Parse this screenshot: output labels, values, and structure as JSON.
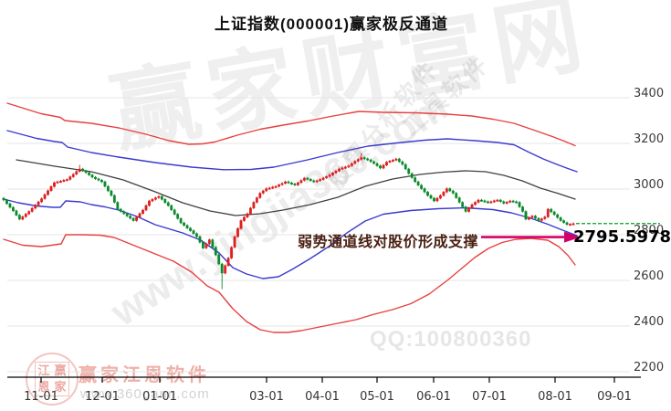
{
  "title": "上证指数(000001)赢家极反通道",
  "annotation": {
    "text": "弱势通道线对股价形成支撑",
    "value_label": "2795.5978"
  },
  "watermarks": {
    "brand_big": "赢家财富网",
    "site_url": "www.yingjia360.com",
    "stock_software": "股票分析软件",
    "tool_software": "工具软件",
    "qq": "QQ:100800360",
    "gann_brand": "赢家江恩软件",
    "gann_url": "www.360gann.com",
    "seal_chars": [
      "江",
      "赢",
      "恩",
      "家"
    ]
  },
  "x_axis": {
    "ticks": [
      {
        "label": "11-01",
        "x": 45
      },
      {
        "label": "12-01",
        "x": 112
      },
      {
        "label": "01-01",
        "x": 175
      },
      {
        "label": "03-01",
        "x": 292
      },
      {
        "label": "04-01",
        "x": 353
      },
      {
        "label": "05-01",
        "x": 413
      },
      {
        "label": "06-01",
        "x": 475
      },
      {
        "label": "07-01",
        "x": 536
      },
      {
        "label": "08-01",
        "x": 608
      },
      {
        "label": "09-01",
        "x": 673
      }
    ]
  },
  "y_axis": {
    "ticks": [
      3400,
      3200,
      3000,
      2800,
      2600,
      2400,
      2200
    ]
  },
  "chart_data": {
    "type": "candlestick",
    "symbol": "上证指数",
    "code": "000001",
    "indicator": "赢家极反通道",
    "title": "上证指数(000001)赢家极反通道",
    "ylim": [
      2200,
      3400
    ],
    "x_labels": [
      "11-01",
      "12-01",
      "01-01",
      "03-01",
      "04-01",
      "05-01",
      "06-01",
      "07-01",
      "08-01",
      "09-01"
    ],
    "first_open": 2960,
    "closes": [
      2952,
      2936,
      2920,
      2905,
      2886,
      2868,
      2879,
      2891,
      2902,
      2916,
      2930,
      2944,
      2958,
      2976,
      2993,
      3011,
      3028,
      3032,
      3035,
      3039,
      3042,
      3054,
      3065,
      3077,
      3088,
      3080,
      3072,
      3062,
      3052,
      3045,
      3039,
      3032,
      3012,
      2992,
      2972,
      2942,
      2912,
      2902,
      2892,
      2882,
      2872,
      2862,
      2877,
      2893,
      2908,
      2928,
      2948,
      2955,
      2962,
      2968,
      2955,
      2941,
      2928,
      2909,
      2890,
      2871,
      2852,
      2841,
      2829,
      2818,
      2805,
      2792,
      2767,
      2742,
      2760,
      2778,
      2745,
      2712,
      2672,
      2632,
      2665,
      2698,
      2745,
      2792,
      2827,
      2862,
      2877,
      2892,
      2917,
      2942,
      2962,
      2982,
      2992,
      3002,
      3005,
      3009,
      3012,
      3019,
      3025,
      3032,
      3027,
      3023,
      3018,
      3028,
      3038,
      3048,
      3043,
      3037,
      3032,
      3037,
      3042,
      3049,
      3055,
      3062,
      3071,
      3079,
      3088,
      3093,
      3097,
      3102,
      3112,
      3122,
      3130,
      3138,
      3133,
      3128,
      3120,
      3112,
      3102,
      3092,
      3105,
      3118,
      3123,
      3127,
      3132,
      3120,
      3108,
      3088,
      3068,
      3050,
      3032,
      3017,
      3002,
      2987,
      2972,
      2960,
      2948,
      2960,
      2972,
      2987,
      3002,
      2992,
      2982,
      2962,
      2942,
      2922,
      2902,
      2917,
      2932,
      2942,
      2952,
      2949,
      2945,
      2942,
      2945,
      2949,
      2952,
      2945,
      2938,
      2943,
      2948,
      2945,
      2942,
      2922,
      2902,
      2868,
      2875,
      2882,
      2872,
      2862,
      2870,
      2878,
      2912,
      2900,
      2888,
      2875,
      2862,
      2853,
      2845,
      2846,
      2849
    ],
    "wick_overrides": {
      "24": {
        "high": 3106
      },
      "69": {
        "low": 2562
      },
      "113": {
        "high": 3158
      }
    },
    "last_price": 2849,
    "support_value": 2795.5978,
    "channels": {
      "upper_extreme_red": [
        [
          8,
          3376
        ],
        [
          45,
          3330
        ],
        [
          66,
          3314
        ],
        [
          71,
          3300
        ],
        [
          100,
          3288
        ],
        [
          130,
          3268
        ],
        [
          160,
          3240
        ],
        [
          185,
          3212
        ],
        [
          207,
          3196
        ],
        [
          222,
          3198
        ],
        [
          235,
          3206
        ],
        [
          260,
          3236
        ],
        [
          285,
          3262
        ],
        [
          310,
          3280
        ],
        [
          337,
          3298
        ],
        [
          365,
          3320
        ],
        [
          393,
          3340
        ],
        [
          420,
          3336
        ],
        [
          455,
          3334
        ],
        [
          490,
          3328
        ],
        [
          517,
          3320
        ],
        [
          540,
          3306
        ],
        [
          563,
          3288
        ],
        [
          585,
          3258
        ],
        [
          605,
          3230
        ],
        [
          618,
          3210
        ],
        [
          630,
          3190
        ]
      ],
      "upper_blue": [
        [
          8,
          3256
        ],
        [
          40,
          3222
        ],
        [
          60,
          3208
        ],
        [
          68,
          3204
        ],
        [
          74,
          3184
        ],
        [
          100,
          3160
        ],
        [
          130,
          3140
        ],
        [
          170,
          3116
        ],
        [
          210,
          3096
        ],
        [
          245,
          3085
        ],
        [
          275,
          3086
        ],
        [
          300,
          3096
        ],
        [
          337,
          3128
        ],
        [
          370,
          3160
        ],
        [
          403,
          3188
        ],
        [
          435,
          3202
        ],
        [
          465,
          3214
        ],
        [
          490,
          3220
        ],
        [
          520,
          3212
        ],
        [
          545,
          3204
        ],
        [
          563,
          3194
        ],
        [
          580,
          3160
        ],
        [
          595,
          3132
        ],
        [
          610,
          3108
        ],
        [
          622,
          3090
        ],
        [
          632,
          3076
        ]
      ],
      "mid_black": [
        [
          18,
          3128
        ],
        [
          60,
          3100
        ],
        [
          100,
          3076
        ],
        [
          135,
          3040
        ],
        [
          170,
          2988
        ],
        [
          200,
          2940
        ],
        [
          230,
          2904
        ],
        [
          258,
          2884
        ],
        [
          285,
          2892
        ],
        [
          310,
          2908
        ],
        [
          340,
          2932
        ],
        [
          370,
          2964
        ],
        [
          400,
          3012
        ],
        [
          430,
          3044
        ],
        [
          460,
          3064
        ],
        [
          485,
          3074
        ],
        [
          510,
          3080
        ],
        [
          532,
          3076
        ],
        [
          552,
          3060
        ],
        [
          572,
          3036
        ],
        [
          592,
          3004
        ],
        [
          612,
          2980
        ],
        [
          630,
          2956
        ]
      ],
      "lower_blue": [
        [
          4,
          2956
        ],
        [
          20,
          2940
        ],
        [
          40,
          2926
        ],
        [
          58,
          2920
        ],
        [
          66,
          2920
        ],
        [
          72,
          2948
        ],
        [
          88,
          2944
        ],
        [
          100,
          2932
        ],
        [
          115,
          2922
        ],
        [
          130,
          2908
        ],
        [
          150,
          2880
        ],
        [
          170,
          2844
        ],
        [
          200,
          2808
        ],
        [
          220,
          2776
        ],
        [
          240,
          2720
        ],
        [
          255,
          2656
        ],
        [
          270,
          2628
        ],
        [
          288,
          2608
        ],
        [
          305,
          2616
        ],
        [
          320,
          2648
        ],
        [
          340,
          2696
        ],
        [
          360,
          2748
        ],
        [
          380,
          2808
        ],
        [
          400,
          2860
        ],
        [
          420,
          2890
        ],
        [
          450,
          2906
        ],
        [
          480,
          2914
        ],
        [
          510,
          2918
        ],
        [
          540,
          2910
        ],
        [
          560,
          2896
        ],
        [
          580,
          2874
        ],
        [
          600,
          2846
        ],
        [
          615,
          2822
        ],
        [
          632,
          2796
        ]
      ],
      "lower_extreme_red": [
        [
          4,
          2780
        ],
        [
          25,
          2754
        ],
        [
          45,
          2748
        ],
        [
          60,
          2756
        ],
        [
          67,
          2760
        ],
        [
          72,
          2800
        ],
        [
          90,
          2800
        ],
        [
          110,
          2798
        ],
        [
          125,
          2788
        ],
        [
          140,
          2764
        ],
        [
          155,
          2740
        ],
        [
          170,
          2716
        ],
        [
          190,
          2684
        ],
        [
          210,
          2636
        ],
        [
          227,
          2576
        ],
        [
          240,
          2548
        ],
        [
          255,
          2476
        ],
        [
          270,
          2420
        ],
        [
          285,
          2384
        ],
        [
          300,
          2372
        ],
        [
          315,
          2372
        ],
        [
          330,
          2380
        ],
        [
          350,
          2396
        ],
        [
          370,
          2412
        ],
        [
          390,
          2428
        ],
        [
          410,
          2452
        ],
        [
          430,
          2472
        ],
        [
          450,
          2498
        ],
        [
          470,
          2540
        ],
        [
          490,
          2600
        ],
        [
          505,
          2650
        ],
        [
          520,
          2700
        ],
        [
          535,
          2740
        ],
        [
          550,
          2766
        ],
        [
          565,
          2780
        ],
        [
          582,
          2784
        ],
        [
          600,
          2776
        ],
        [
          612,
          2748
        ],
        [
          622,
          2710
        ],
        [
          630,
          2668
        ]
      ]
    },
    "colors": {
      "up": "#dd1f1f",
      "down": "#0a8a2a",
      "red_line": "#e84040",
      "blue_line": "#3a3ad0",
      "mid_line": "#404040",
      "dashed_last_price": "#00a020",
      "arrow": "#d4006a",
      "grid": "#e4e4e4",
      "axis": "#000000",
      "tick_label": "#333333",
      "y_label": "#3a3a3a"
    },
    "legend_position": "none",
    "grid": "horizontal-only"
  }
}
